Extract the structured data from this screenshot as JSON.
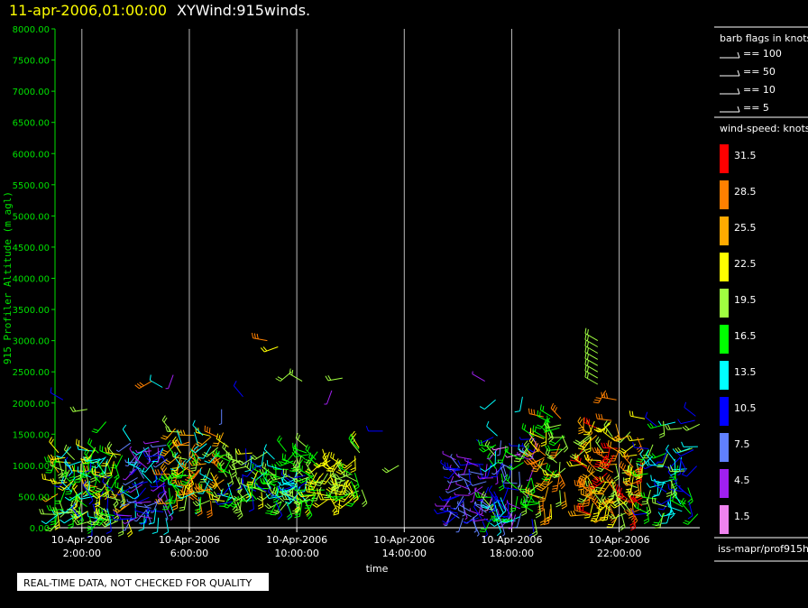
{
  "header": {
    "datetime": "11-apr-2006,01:00:00",
    "plot_title": "XYWind:915winds."
  },
  "chart_data": {
    "type": "scatter",
    "ylabel": "915 Profiler Altitude (m agl)",
    "xlabel": "time",
    "ylim": [
      0,
      8000
    ],
    "yticks": [
      "0.00",
      "500.00",
      "1000.00",
      "1500.00",
      "2000.00",
      "2500.00",
      "3000.00",
      "3500.00",
      "4000.00",
      "4500.00",
      "5000.00",
      "5500.00",
      "6000.00",
      "6500.00",
      "7000.00",
      "7500.00",
      "8000.00"
    ],
    "xlim_hours": [
      1.0,
      25.0
    ],
    "xticks": [
      {
        "hour": 2,
        "date": "10-Apr-2006",
        "time": "2:00:00"
      },
      {
        "hour": 6,
        "date": "10-Apr-2006",
        "time": "6:00:00"
      },
      {
        "hour": 10,
        "date": "10-Apr-2006",
        "time": "10:00:00"
      },
      {
        "hour": 14,
        "date": "10-Apr-2006",
        "time": "14:00:00"
      },
      {
        "hour": 18,
        "date": "10-Apr-2006",
        "time": "18:00:00"
      },
      {
        "hour": 22,
        "date": "10-Apr-2006",
        "time": "22:00:00"
      }
    ],
    "grid": "vertical",
    "wind_barb_clusters": [
      {
        "hour_start": 1.0,
        "hour_end": 3.8,
        "alt_low": 100,
        "alt_high": 1300,
        "speed": [
          10,
          25
        ],
        "count": 140
      },
      {
        "hour_start": 3.8,
        "hour_end": 5.2,
        "alt_low": 150,
        "alt_high": 1400,
        "speed": [
          4,
          14
        ],
        "count": 70
      },
      {
        "hour_start": 5.2,
        "hour_end": 7.5,
        "alt_low": 400,
        "alt_high": 1600,
        "speed": [
          12,
          29
        ],
        "count": 90
      },
      {
        "hour_start": 7.5,
        "hour_end": 10.5,
        "alt_low": 400,
        "alt_high": 1300,
        "speed": [
          10,
          22
        ],
        "count": 120
      },
      {
        "hour_start": 10.5,
        "hour_end": 12.5,
        "alt_low": 450,
        "alt_high": 1300,
        "speed": [
          16,
          24
        ],
        "count": 70
      },
      {
        "hour_start": 15.7,
        "hour_end": 17.2,
        "alt_low": 100,
        "alt_high": 1100,
        "speed": [
          3,
          12
        ],
        "count": 60
      },
      {
        "hour_start": 17.2,
        "hour_end": 19.0,
        "alt_low": 100,
        "alt_high": 1500,
        "speed": [
          2,
          20
        ],
        "count": 90
      },
      {
        "hour_start": 19.0,
        "hour_end": 20.0,
        "alt_low": 300,
        "alt_high": 1800,
        "speed": [
          16,
          30
        ],
        "count": 50
      },
      {
        "hour_start": 20.6,
        "hour_end": 23.0,
        "alt_low": 200,
        "alt_high": 1800,
        "speed": [
          18,
          33
        ],
        "count": 120
      },
      {
        "hour_start": 23.0,
        "hour_end": 25.0,
        "alt_low": 200,
        "alt_high": 1800,
        "speed": [
          9,
          20
        ],
        "count": 70
      }
    ],
    "wind_barb_isolated": [
      {
        "hour": 1.3,
        "alt": 2050,
        "speed": 10,
        "dir": 300
      },
      {
        "hour": 2.2,
        "alt": 1900,
        "speed": 20,
        "dir": 260
      },
      {
        "hour": 2.9,
        "alt": 1700,
        "speed": 16,
        "dir": 220
      },
      {
        "hour": 4.6,
        "alt": 2350,
        "speed": 28,
        "dir": 240
      },
      {
        "hour": 5.0,
        "alt": 2250,
        "speed": 14,
        "dir": 300
      },
      {
        "hour": 5.4,
        "alt": 2450,
        "speed": 5,
        "dir": 200
      },
      {
        "hour": 7.2,
        "alt": 1900,
        "speed": 8,
        "dir": 180
      },
      {
        "hour": 8.0,
        "alt": 2100,
        "speed": 12,
        "dir": 320
      },
      {
        "hour": 8.9,
        "alt": 3000,
        "speed": 30,
        "dir": 280
      },
      {
        "hour": 9.3,
        "alt": 2900,
        "speed": 24,
        "dir": 250
      },
      {
        "hour": 9.8,
        "alt": 2500,
        "speed": 20,
        "dir": 230
      },
      {
        "hour": 10.2,
        "alt": 2350,
        "speed": 21,
        "dir": 300
      },
      {
        "hour": 11.3,
        "alt": 2200,
        "speed": 5,
        "dir": 200
      },
      {
        "hour": 11.7,
        "alt": 2400,
        "speed": 21,
        "dir": 260
      },
      {
        "hour": 13.2,
        "alt": 1550,
        "speed": 12,
        "dir": 270
      },
      {
        "hour": 13.8,
        "alt": 1000,
        "speed": 20,
        "dir": 240
      },
      {
        "hour": 17.0,
        "alt": 2350,
        "speed": 4,
        "dir": 300
      },
      {
        "hour": 17.4,
        "alt": 2050,
        "speed": 14,
        "dir": 230
      },
      {
        "hour": 18.4,
        "alt": 2100,
        "speed": 13,
        "dir": 190
      },
      {
        "hour": 21.5,
        "alt": 2200,
        "speed": 28,
        "dir": 210
      },
      {
        "hour": 21.9,
        "alt": 2050,
        "speed": 30,
        "dir": 280
      }
    ],
    "wind_barb_column": {
      "hour": 21.2,
      "alt_from": 2300,
      "alt_to": 3050,
      "step": 100,
      "speed": 20,
      "dir": 300
    }
  },
  "legend_barbs": {
    "title": "barb flags in knots",
    "items": [
      {
        "label": "== 100"
      },
      {
        "label": "== 50"
      },
      {
        "label": "== 10"
      },
      {
        "label": "== 5"
      }
    ]
  },
  "color_scale": {
    "title": "wind-speed: knots",
    "items": [
      {
        "label": "31.5",
        "color": "#ff0000"
      },
      {
        "label": "28.5",
        "color": "#ff8000"
      },
      {
        "label": "25.5",
        "color": "#ffaa00"
      },
      {
        "label": "22.5",
        "color": "#ffff00"
      },
      {
        "label": "19.5",
        "color": "#a0ff40"
      },
      {
        "label": "16.5",
        "color": "#00ff00"
      },
      {
        "label": "13.5",
        "color": "#00ffff"
      },
      {
        "label": "10.5",
        "color": "#0000ff"
      },
      {
        "label": "7.5",
        "color": "#6080ff"
      },
      {
        "label": "4.5",
        "color": "#a020f0"
      },
      {
        "label": "1.5",
        "color": "#ee82ee"
      }
    ]
  },
  "footer_path": "iss-mapr/prof915h",
  "notice": "REAL-TIME DATA, NOT CHECKED FOR QUALITY",
  "colors": {
    "background": "#000000",
    "axis_green": "#00e000",
    "title_yellow": "#ffff00",
    "grid": "#bbbbbb"
  }
}
